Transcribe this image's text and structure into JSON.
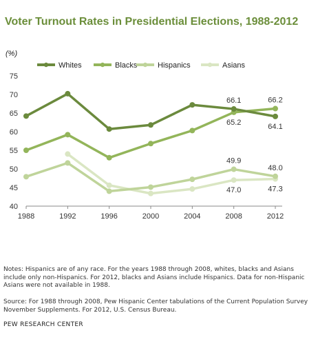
{
  "title": "Voter Turnout Rates in Presidential Elections, 1988-2012",
  "unit_label": "(%)",
  "notes": "Notes: Hispanics are of any race. For the years 1988 through 2008, whites, blacks and Asians include only non-Hispanics. For 2012, blacks and Asians include Hispanics. Data for non-Hispanic Asians were not available in 1988.",
  "source": "Source: For 1988 through 2008, Pew Hispanic Center tabulations of the Current Population Survey November Supplements. For 2012, U.S. Census Bureau.",
  "org": "PEW RESEARCH CENTER",
  "chart_data": {
    "type": "line",
    "title": "Voter Turnout Rates in Presidential Elections, 1988-2012",
    "ylabel": "(%)",
    "xlabel": "",
    "x": [
      1988,
      1992,
      1996,
      2000,
      2004,
      2008,
      2012
    ],
    "ylim": [
      40,
      75
    ],
    "yticks": [
      40,
      45,
      50,
      55,
      60,
      65,
      70,
      75
    ],
    "grid": false,
    "legend": "top",
    "series": [
      {
        "name": "Whites",
        "color": "#6b8a3d",
        "values": [
          64.2,
          70.2,
          60.7,
          61.8,
          67.2,
          66.1,
          64.1
        ]
      },
      {
        "name": "Blacks",
        "color": "#93b55a",
        "values": [
          55.0,
          59.2,
          53.0,
          56.8,
          60.3,
          65.2,
          66.2
        ]
      },
      {
        "name": "Hispanics",
        "color": "#bfd49a",
        "values": [
          47.9,
          51.6,
          44.0,
          45.1,
          47.2,
          49.9,
          48.0
        ]
      },
      {
        "name": "Asians",
        "color": "#dae6c3",
        "values": [
          null,
          54.0,
          45.6,
          43.4,
          44.6,
          47.0,
          47.3
        ]
      }
    ],
    "annotations": [
      {
        "series": "Whites",
        "x": 2008,
        "text": "66.1",
        "placement": "above"
      },
      {
        "series": "Blacks",
        "x": 2008,
        "text": "65.2",
        "placement": "below"
      },
      {
        "series": "Blacks",
        "x": 2012,
        "text": "66.2",
        "placement": "above"
      },
      {
        "series": "Whites",
        "x": 2012,
        "text": "64.1",
        "placement": "below"
      },
      {
        "series": "Hispanics",
        "x": 2008,
        "text": "49.9",
        "placement": "above"
      },
      {
        "series": "Asians",
        "x": 2008,
        "text": "47.0",
        "placement": "below"
      },
      {
        "series": "Hispanics",
        "x": 2012,
        "text": "48.0",
        "placement": "above"
      },
      {
        "series": "Asians",
        "x": 2012,
        "text": "47.3",
        "placement": "below"
      }
    ]
  }
}
